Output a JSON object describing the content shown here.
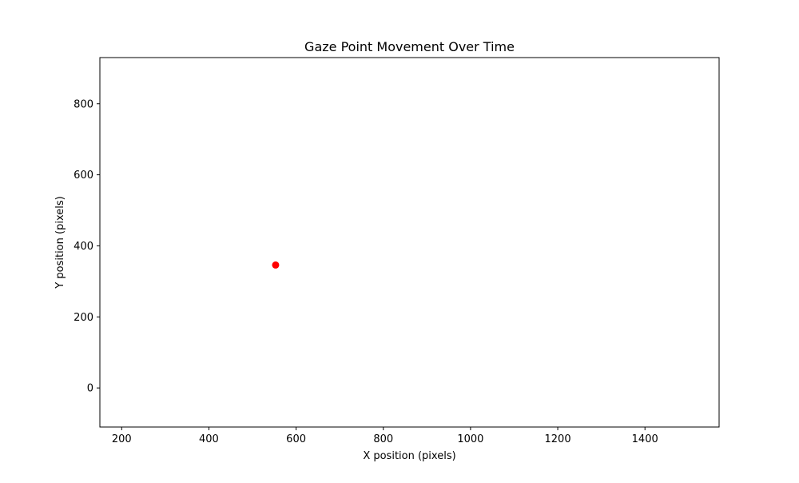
{
  "chart_data": {
    "type": "scatter",
    "title": "Gaze Point Movement Over Time",
    "xlabel": "X position (pixels)",
    "ylabel": "Y position (pixels)",
    "xlim": [
      150,
      1570
    ],
    "ylim": [
      -110,
      930
    ],
    "xticks": [
      200,
      400,
      600,
      800,
      1000,
      1200,
      1400
    ],
    "yticks": [
      0,
      200,
      400,
      600,
      800
    ],
    "grid": false,
    "points": [
      {
        "x": 553,
        "y": 346
      }
    ],
    "marker_color": "#ff0000"
  }
}
